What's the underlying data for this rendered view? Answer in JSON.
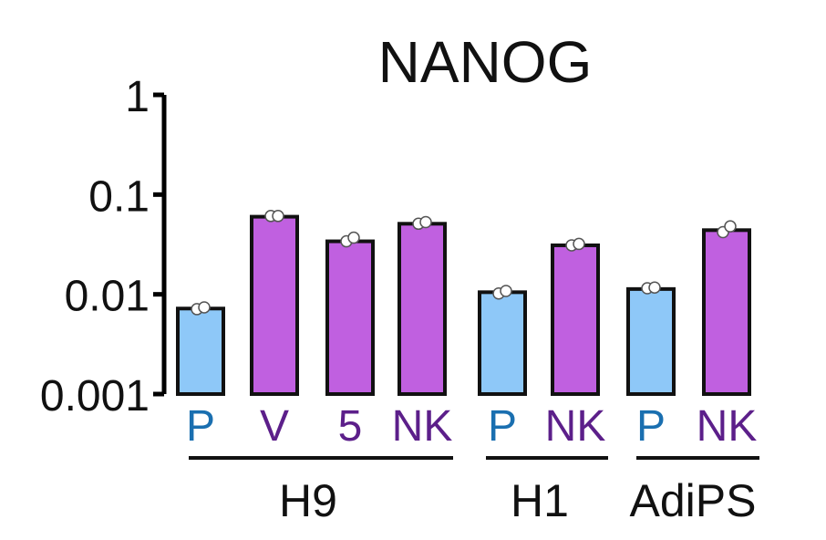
{
  "chart_data": {
    "type": "bar",
    "title": "NANOG",
    "xlabel": "",
    "ylabel": "",
    "yscale": "log",
    "ylim": [
      0.001,
      1
    ],
    "yticks": [
      {
        "value": 1,
        "label": "1"
      },
      {
        "value": 0.1,
        "label": "0.1"
      },
      {
        "value": 0.01,
        "label": "0.01"
      },
      {
        "value": 0.001,
        "label": "0.001"
      }
    ],
    "categories": [
      "P",
      "V",
      "5",
      "NK",
      "P",
      "NK",
      "P",
      "NK"
    ],
    "values": [
      0.0072,
      0.06,
      0.034,
      0.051,
      0.0105,
      0.031,
      0.0113,
      0.044
    ],
    "points": [
      [
        0.0071,
        0.0074
      ],
      [
        0.061,
        0.061
      ],
      [
        0.034,
        0.037
      ],
      [
        0.051,
        0.053
      ],
      [
        0.0102,
        0.0108
      ],
      [
        0.031,
        0.032
      ],
      [
        0.0115,
        0.0117
      ],
      [
        0.042,
        0.048
      ]
    ],
    "bar_colors": [
      "#8ec8f8",
      "#c060e0",
      "#c060e0",
      "#c060e0",
      "#8ec8f8",
      "#c060e0",
      "#8ec8f8",
      "#c060e0"
    ],
    "label_colors": [
      "#1a6fb0",
      "#5c1f8a",
      "#5c1f8a",
      "#5c1f8a",
      "#1a6fb0",
      "#5c1f8a",
      "#1a6fb0",
      "#5c1f8a"
    ],
    "groups": [
      {
        "label": "H9",
        "from": 0,
        "to": 3
      },
      {
        "label": "H1",
        "from": 4,
        "to": 5
      },
      {
        "label": "AdiPS",
        "from": 6,
        "to": 7
      }
    ],
    "grid": false,
    "legend": "none"
  }
}
